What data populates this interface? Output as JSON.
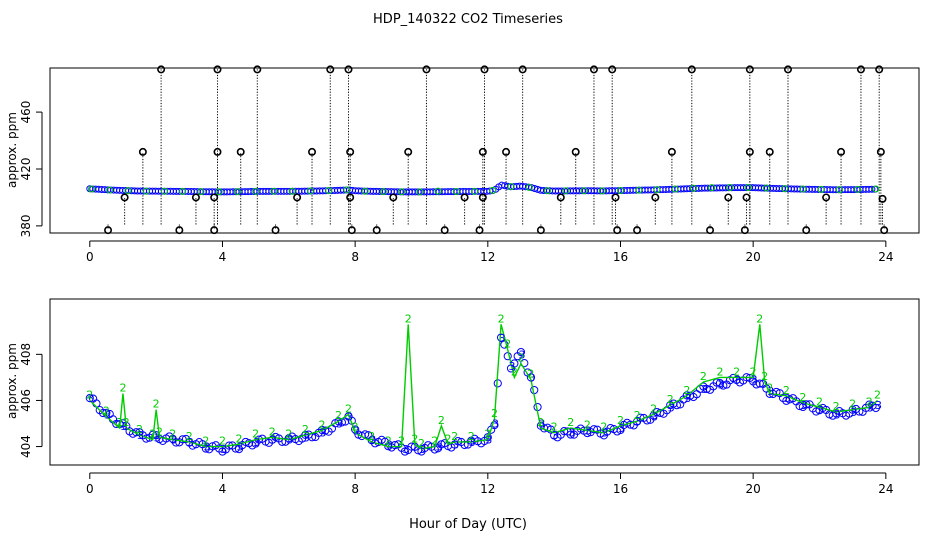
{
  "title": "HDP_140322  CO2 Timeseries",
  "colors": {
    "axis": "#000000",
    "stem": "#000000",
    "level1": "#000000",
    "level2": "#00cc00",
    "level3": "#0000ff",
    "line": "#00cc00"
  },
  "chart_data": [
    {
      "type": "scatter",
      "panel": "top",
      "xlabel": "",
      "ylabel": "approx. ppm",
      "xlim": [
        -1.2,
        25
      ],
      "ylim": [
        375,
        491
      ],
      "xticks": [
        0,
        4,
        8,
        12,
        16,
        20,
        24
      ],
      "xtick_labels": [
        "0",
        "4",
        "8",
        "12",
        "16",
        "20",
        "24"
      ],
      "yticks": [
        380,
        420,
        460
      ],
      "ytick_labels": [
        "380",
        "420",
        "460"
      ],
      "baseline_level": 381,
      "spikes_high": [
        {
          "x": 2.15,
          "y": 490
        },
        {
          "x": 3.85,
          "y": 490
        },
        {
          "x": 5.05,
          "y": 490
        },
        {
          "x": 7.25,
          "y": 490
        },
        {
          "x": 7.8,
          "y": 490
        },
        {
          "x": 10.15,
          "y": 490
        },
        {
          "x": 11.9,
          "y": 490
        },
        {
          "x": 13.05,
          "y": 490
        },
        {
          "x": 15.2,
          "y": 490
        },
        {
          "x": 15.75,
          "y": 490
        },
        {
          "x": 18.15,
          "y": 490
        },
        {
          "x": 19.9,
          "y": 490
        },
        {
          "x": 21.05,
          "y": 490
        },
        {
          "x": 23.25,
          "y": 490
        },
        {
          "x": 23.8,
          "y": 490
        }
      ],
      "spikes_mid": [
        {
          "x": 1.6,
          "y": 432
        },
        {
          "x": 3.85,
          "y": 432
        },
        {
          "x": 4.55,
          "y": 432
        },
        {
          "x": 6.7,
          "y": 432
        },
        {
          "x": 7.85,
          "y": 432
        },
        {
          "x": 9.6,
          "y": 432
        },
        {
          "x": 11.85,
          "y": 432
        },
        {
          "x": 12.55,
          "y": 432
        },
        {
          "x": 14.65,
          "y": 432
        },
        {
          "x": 17.55,
          "y": 432
        },
        {
          "x": 19.9,
          "y": 432
        },
        {
          "x": 20.5,
          "y": 432
        },
        {
          "x": 22.65,
          "y": 432
        },
        {
          "x": 23.85,
          "y": 432
        }
      ],
      "spikes_low": [
        {
          "x": 0.55,
          "y": 377
        },
        {
          "x": 2.7,
          "y": 377
        },
        {
          "x": 3.75,
          "y": 377
        },
        {
          "x": 5.6,
          "y": 377
        },
        {
          "x": 7.9,
          "y": 377
        },
        {
          "x": 8.65,
          "y": 377
        },
        {
          "x": 10.7,
          "y": 377
        },
        {
          "x": 11.75,
          "y": 377
        },
        {
          "x": 13.6,
          "y": 377
        },
        {
          "x": 15.9,
          "y": 377
        },
        {
          "x": 16.5,
          "y": 377
        },
        {
          "x": 18.7,
          "y": 377
        },
        {
          "x": 19.75,
          "y": 377
        },
        {
          "x": 21.6,
          "y": 377
        },
        {
          "x": 23.95,
          "y": 377
        }
      ],
      "spikes_near": [
        {
          "x": 1.05,
          "y": 400
        },
        {
          "x": 3.2,
          "y": 400
        },
        {
          "x": 3.75,
          "y": 400
        },
        {
          "x": 6.25,
          "y": 400
        },
        {
          "x": 7.85,
          "y": 400
        },
        {
          "x": 9.15,
          "y": 400
        },
        {
          "x": 11.3,
          "y": 400
        },
        {
          "x": 11.85,
          "y": 400
        },
        {
          "x": 14.2,
          "y": 400
        },
        {
          "x": 15.85,
          "y": 400
        },
        {
          "x": 17.05,
          "y": 400
        },
        {
          "x": 19.25,
          "y": 400
        },
        {
          "x": 19.8,
          "y": 400
        },
        {
          "x": 22.2,
          "y": 400
        },
        {
          "x": 23.9,
          "y": 399
        }
      ]
    },
    {
      "type": "line",
      "panel": "bottom",
      "xlabel": "Hour of Day (UTC)",
      "ylabel": "approx. ppm",
      "xlim": [
        -1.2,
        25
      ],
      "ylim": [
        403.2,
        410.4
      ],
      "xticks": [
        0,
        4,
        8,
        12,
        16,
        20,
        24
      ],
      "xtick_labels": [
        "0",
        "4",
        "8",
        "12",
        "16",
        "20",
        "24"
      ],
      "yticks": [
        404,
        406,
        408
      ],
      "ytick_labels": [
        "404",
        "406",
        "408"
      ],
      "series": [
        {
          "marker": "3",
          "x": [
            0.0,
            0.5,
            1.0,
            1.5,
            2.0,
            2.5,
            3.0,
            3.5,
            4.0,
            4.5,
            5.0,
            5.5,
            6.0,
            6.5,
            7.0,
            7.5,
            7.8,
            8.0,
            8.5,
            9.0,
            9.5,
            10.0,
            10.5,
            11.0,
            11.5,
            12.0,
            12.2,
            12.4,
            12.7,
            13.0,
            13.3,
            13.6,
            14.0,
            14.5,
            15.0,
            15.5,
            16.0,
            16.5,
            17.0,
            17.5,
            18.0,
            18.5,
            19.0,
            19.5,
            20.0,
            20.5,
            21.0,
            21.5,
            22.0,
            22.5,
            23.0,
            23.5,
            23.75
          ],
          "y": [
            406.1,
            405.4,
            404.9,
            404.5,
            404.4,
            404.3,
            404.2,
            404.0,
            403.9,
            404.0,
            404.2,
            404.3,
            404.3,
            404.4,
            404.6,
            405.0,
            405.3,
            404.7,
            404.3,
            404.1,
            403.9,
            403.9,
            404.0,
            404.1,
            404.2,
            404.3,
            405.0,
            408.7,
            407.5,
            408.0,
            407.0,
            405.0,
            404.5,
            404.6,
            404.7,
            404.6,
            404.8,
            405.1,
            405.3,
            405.7,
            406.1,
            406.5,
            406.7,
            406.9,
            406.9,
            406.4,
            406.1,
            405.8,
            405.6,
            405.4,
            405.5,
            405.7,
            405.8
          ]
        },
        {
          "marker": "2",
          "x": [
            0.0,
            0.5,
            0.9,
            1.0,
            1.1,
            1.5,
            1.9,
            2.0,
            2.1,
            2.5,
            3.0,
            3.5,
            4.0,
            4.5,
            5.0,
            5.5,
            6.0,
            6.5,
            7.0,
            7.5,
            7.8,
            8.0,
            8.5,
            9.0,
            9.4,
            9.6,
            9.8,
            10.0,
            10.4,
            10.6,
            10.8,
            11.0,
            11.5,
            12.0,
            12.2,
            12.4,
            12.6,
            12.8,
            13.0,
            13.3,
            13.6,
            14.0,
            14.5,
            15.0,
            15.5,
            16.0,
            16.5,
            17.0,
            17.5,
            18.0,
            18.5,
            19.0,
            19.5,
            20.0,
            20.2,
            20.35,
            20.5,
            21.0,
            21.5,
            22.0,
            22.5,
            23.0,
            23.5,
            23.75
          ],
          "y": [
            406.0,
            405.3,
            404.8,
            406.3,
            404.8,
            404.5,
            404.3,
            405.6,
            404.4,
            404.3,
            404.2,
            404.0,
            404.0,
            404.1,
            404.3,
            404.4,
            404.3,
            404.5,
            404.7,
            405.1,
            405.4,
            404.6,
            404.2,
            404.0,
            404.0,
            409.3,
            404.1,
            403.9,
            404.0,
            404.9,
            404.1,
            404.2,
            404.2,
            404.3,
            405.2,
            409.3,
            408.2,
            407.0,
            407.6,
            406.9,
            404.8,
            404.6,
            404.8,
            404.7,
            404.6,
            404.9,
            405.1,
            405.4,
            405.8,
            406.2,
            406.8,
            407.0,
            407.0,
            407.0,
            409.3,
            406.8,
            406.3,
            406.2,
            405.9,
            405.7,
            405.5,
            405.6,
            405.7,
            406.0
          ]
        }
      ]
    }
  ]
}
